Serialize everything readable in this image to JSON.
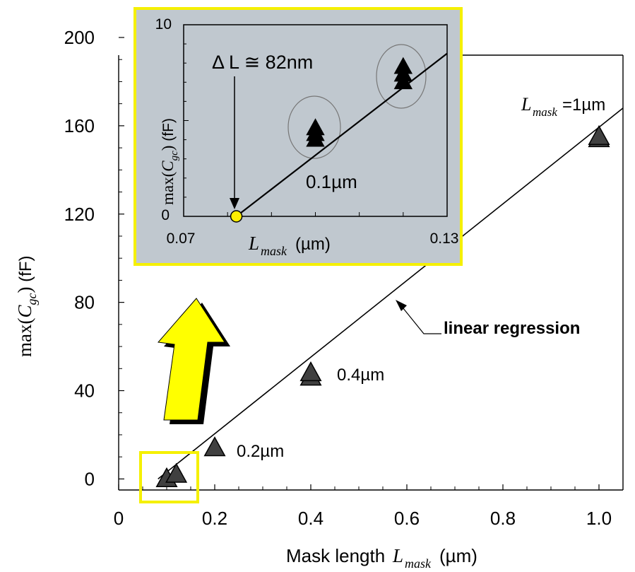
{
  "chart_data": [
    {
      "type": "scatter",
      "xlabel": "Mask length L_mask (µm)",
      "ylabel": "max(C_gc) (fF)",
      "xlim": [
        0,
        1.05
      ],
      "ylim": [
        -5,
        200
      ],
      "x_ticks": [
        "0",
        "0.2",
        "0.4",
        "0.6",
        "0.8",
        "1.0"
      ],
      "y_ticks": [
        "0",
        "40",
        "80",
        "120",
        "160",
        "200"
      ],
      "series": [
        {
          "marker": "triangle",
          "color": "#404040",
          "points": [
            {
              "x": 0.1,
              "y": 0
            },
            {
              "x": 0.12,
              "y": 2
            },
            {
              "x": 0.2,
              "y": 14
            },
            {
              "x": 0.4,
              "y": 46
            },
            {
              "x": 0.4,
              "y": 48
            },
            {
              "x": 1.0,
              "y": 154
            },
            {
              "x": 1.0,
              "y": 155
            }
          ]
        }
      ],
      "fit_line": {
        "x": [
          0.082,
          1.05
        ],
        "y": [
          0,
          168
        ]
      },
      "annotations": {
        "p02": "0.2µm",
        "p04": "0.4µm",
        "p1_sub": "mask",
        "p1_eq": "=1µm",
        "regression": "linear regression"
      }
    },
    {
      "type": "scatter",
      "xlabel": "L_mask (µm)",
      "ylabel": "max(C_gc) (fF)",
      "xlim": [
        0.07,
        0.13
      ],
      "ylim": [
        0,
        10
      ],
      "x_ticks": [
        "0.07",
        "0.13"
      ],
      "y_ticks": [
        "0",
        "10"
      ],
      "series": [
        {
          "marker": "triangle",
          "color": "#000000",
          "points": [
            {
              "x": 0.1,
              "y": 4.6
            },
            {
              "x": 0.1,
              "y": 4.3
            },
            {
              "x": 0.1,
              "y": 4.0
            },
            {
              "x": 0.12,
              "y": 7.8
            },
            {
              "x": 0.12,
              "y": 7.4
            },
            {
              "x": 0.12,
              "y": 7.0
            }
          ]
        }
      ],
      "fit_line": {
        "x": [
          0.082,
          0.13
        ],
        "y": [
          0,
          8.5
        ]
      },
      "delta_L_point": {
        "x": 0.082,
        "y": 0
      },
      "annotations": {
        "delta": "Δ L ≅ 82nm",
        "p01": "0.1µm"
      }
    }
  ],
  "colors": {
    "inset_bg": "#c0c8cf",
    "highlight": "#f5f000",
    "marker_main": "#404040",
    "arrow_fill": "#ffff00"
  }
}
